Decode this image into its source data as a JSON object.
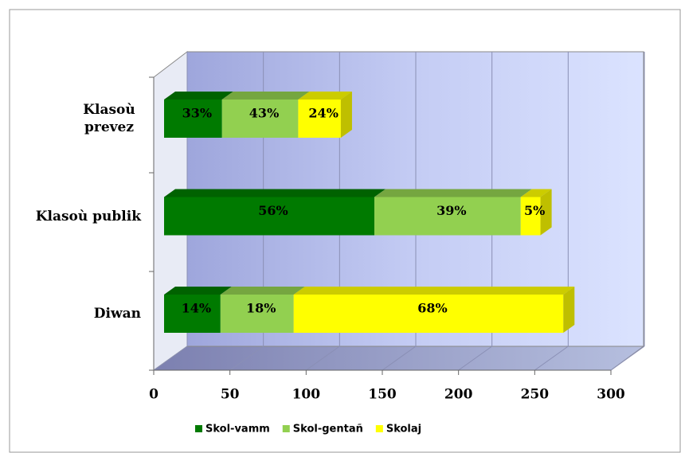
{
  "chart_data": {
    "type": "bar",
    "orientation": "horizontal",
    "stacked": true,
    "categories": [
      "Klasoù prevez",
      "Klasoù publik",
      "Diwan"
    ],
    "series": [
      {
        "name": "Skol-vamm",
        "color": "#007a00",
        "values": [
          38,
          138,
          37
        ],
        "labels": [
          "33%",
          "56%",
          "14%"
        ]
      },
      {
        "name": "Skol-gentañ",
        "color": "#92d050",
        "values": [
          50,
          96,
          48
        ],
        "labels": [
          "43%",
          "39%",
          "18%"
        ]
      },
      {
        "name": "Skolaj",
        "color": "#ffff00",
        "values": [
          28,
          13,
          177
        ],
        "labels": [
          "24%",
          "5%",
          "68%"
        ]
      }
    ],
    "xlim": [
      0,
      300
    ],
    "xticks": [
      0,
      50,
      100,
      150,
      200,
      250,
      300
    ],
    "grid": true,
    "legend": "bottom"
  }
}
